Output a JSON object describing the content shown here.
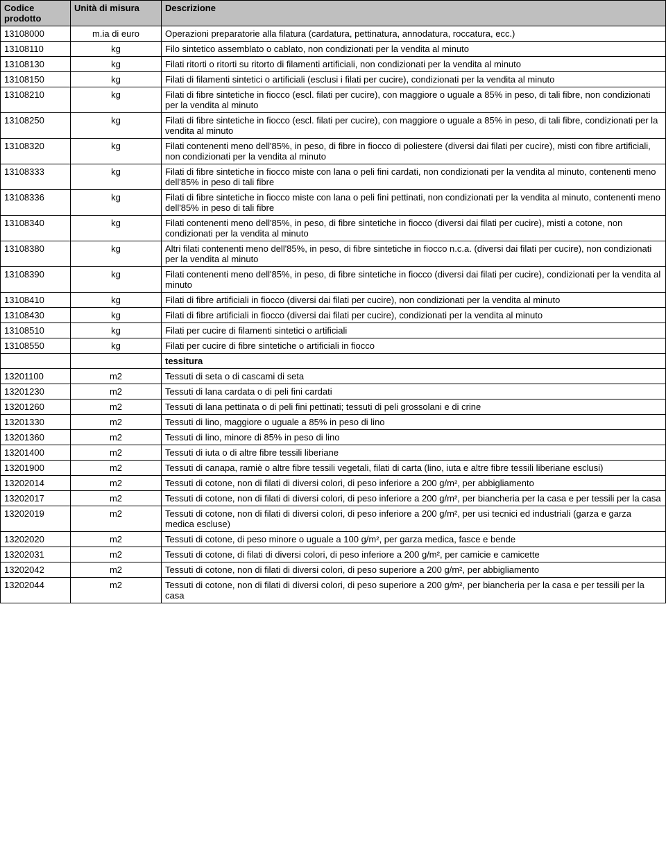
{
  "columns": [
    "Codice prodotto",
    "Unità di misura",
    "Descrizione"
  ],
  "rows": [
    {
      "code": "13108000",
      "unit": "m.ia di euro",
      "desc": "Operazioni preparatorie alla filatura (cardatura, pettinatura, annodatura, roccatura, ecc.)"
    },
    {
      "code": "13108110",
      "unit": "kg",
      "desc": "Filo sintetico assemblato o cablato, non condizionati per la vendita al minuto"
    },
    {
      "code": "13108130",
      "unit": "kg",
      "desc": "Filati ritorti o ritorti su ritorto di filamenti artificiali, non condizionati per la vendita al minuto"
    },
    {
      "code": "13108150",
      "unit": "kg",
      "desc": "Filati di filamenti sintetici o artificiali (esclusi i filati per cucire), condizionati per la vendita al minuto"
    },
    {
      "code": "13108210",
      "unit": "kg",
      "desc": "Filati di fibre sintetiche in fiocco (escl. filati per cucire), con maggiore o uguale a 85% in peso, di tali fibre, non condizionati per la vendita al minuto"
    },
    {
      "code": "13108250",
      "unit": "kg",
      "desc": "Filati di fibre sintetiche in fiocco (escl. filati per cucire), con maggiore o uguale a 85% in peso, di tali fibre, condizionati per la vendita al minuto"
    },
    {
      "code": "13108320",
      "unit": "kg",
      "desc": "Filati contenenti meno dell'85%, in peso, di fibre in fiocco di poliestere (diversi dai filati per cucire), misti con fibre artificiali, non condizionati per la vendita al minuto"
    },
    {
      "code": "13108333",
      "unit": "kg",
      "desc": "Filati di fibre sintetiche in fiocco miste con lana o peli fini cardati, non condizionati per la vendita al minuto, contenenti meno dell'85% in peso di tali fibre"
    },
    {
      "code": "13108336",
      "unit": "kg",
      "desc": "Filati di fibre sintetiche in fiocco miste con lana o peli fini pettinati, non condizionati per la vendita al minuto, contenenti meno dell'85% in peso di tali fibre"
    },
    {
      "code": "13108340",
      "unit": "kg",
      "desc": "Filati contenenti meno dell'85%, in peso, di fibre sintetiche in fiocco (diversi dai filati per cucire), misti a cotone, non condizionati per la vendita al minuto"
    },
    {
      "code": "13108380",
      "unit": "kg",
      "desc": "Altri filati contenenti meno dell'85%, in peso, di fibre sintetiche in fiocco n.c.a. (diversi dai filati per cucire), non condizionati per la vendita al minuto"
    },
    {
      "code": "13108390",
      "unit": "kg",
      "desc": "Filati contenenti meno dell'85%, in peso, di fibre sintetiche in fiocco (diversi dai filati per cucire), condizionati per la vendita al minuto"
    },
    {
      "code": "13108410",
      "unit": "kg",
      "desc": "Filati di fibre artificiali in fiocco (diversi dai filati per cucire), non condizionati per la vendita al minuto"
    },
    {
      "code": "13108430",
      "unit": "kg",
      "desc": "Filati di fibre artificiali in fiocco (diversi dai filati per cucire), condizionati per la vendita al minuto"
    },
    {
      "code": "13108510",
      "unit": "kg",
      "desc": "Filati per cucire di filamenti sintetici o artificiali"
    },
    {
      "code": "13108550",
      "unit": "kg",
      "desc": "Filati per cucire di fibre sintetiche o artificiali in fiocco"
    },
    {
      "code": "",
      "unit": "",
      "desc": "tessitura",
      "bold": true
    },
    {
      "code": "13201100",
      "unit": "m2",
      "desc": "Tessuti di seta o di cascami di seta"
    },
    {
      "code": "13201230",
      "unit": "m2",
      "desc": "Tessuti di lana cardata o di peli fini cardati"
    },
    {
      "code": "13201260",
      "unit": "m2",
      "desc": "Tessuti di lana pettinata o di peli fini pettinati; tessuti di peli grossolani e di crine"
    },
    {
      "code": "13201330",
      "unit": "m2",
      "desc": "Tessuti di lino, maggiore o uguale a 85% in peso di lino"
    },
    {
      "code": "13201360",
      "unit": "m2",
      "desc": "Tessuti di lino, minore di 85% in peso di lino"
    },
    {
      "code": "13201400",
      "unit": "m2",
      "desc": "Tessuti di iuta o di altre fibre tessili liberiane"
    },
    {
      "code": "13201900",
      "unit": "m2",
      "desc": "Tessuti di canapa, ramiè o altre fibre tessili vegetali, filati di carta (lino, iuta e altre fibre tessili liberiane esclusi)"
    },
    {
      "code": "13202014",
      "unit": "m2",
      "desc": "Tessuti di cotone, non di filati di diversi colori, di peso inferiore a 200 g/m², per abbigliamento"
    },
    {
      "code": "13202017",
      "unit": "m2",
      "desc": "Tessuti di cotone, non di filati di diversi colori, di peso inferiore a 200 g/m², per biancheria per la casa e per tessili per la casa"
    },
    {
      "code": "13202019",
      "unit": "m2",
      "desc": "Tessuti di cotone, non di filati di diversi colori, di peso inferiore a 200 g/m², per usi tecnici ed industriali (garza e garza medica escluse)"
    },
    {
      "code": "13202020",
      "unit": "m2",
      "desc": "Tessuti di cotone, di peso minore o uguale a 100 g/m², per garza medica, fasce e bende"
    },
    {
      "code": "13202031",
      "unit": "m2",
      "desc": "Tessuti di cotone, di filati di diversi colori, di peso inferiore a 200 g/m², per camicie e camicette"
    },
    {
      "code": "13202042",
      "unit": "m2",
      "desc": "Tessuti di cotone, non di filati di diversi colori, di peso superiore a 200 g/m², per abbigliamento"
    },
    {
      "code": "13202044",
      "unit": "m2",
      "desc": "Tessuti di cotone, non di filati di diversi colori, di peso superiore a 200 g/m², per biancheria per la casa e per tessili per la casa"
    }
  ]
}
